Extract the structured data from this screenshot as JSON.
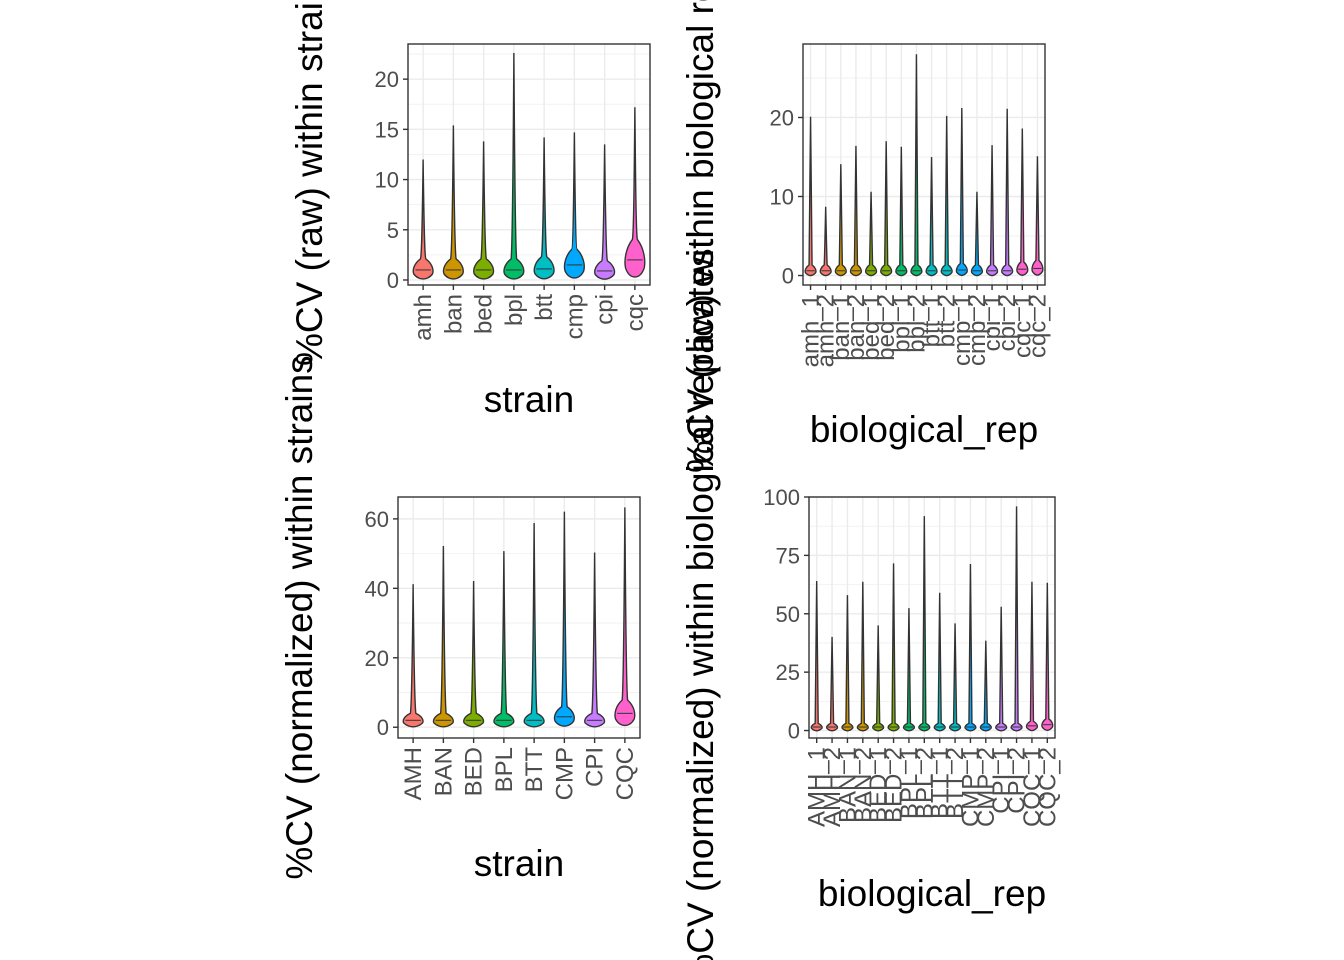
{
  "palette": [
    "#F8766D",
    "#CD9600",
    "#7CAE00",
    "#00BE67",
    "#00BFC4",
    "#00A9FF",
    "#C77CFF",
    "#FF61CC"
  ],
  "chart_data": [
    {
      "type": "violin",
      "xlabel": "strain",
      "ylabel": "%CV (raw) within strains",
      "ylim": [
        -0.5,
        23.5
      ],
      "yticks": [
        0,
        5,
        10,
        15,
        20
      ],
      "grid": true,
      "categories": [
        "amh",
        "ban",
        "bed",
        "bpl",
        "btt",
        "cmp",
        "cpi",
        "cqc"
      ],
      "max": [
        12,
        15.4,
        13.8,
        22.6,
        14.2,
        14.7,
        13.5,
        17.2
      ],
      "median": [
        1.0,
        1.0,
        1.0,
        1.0,
        1.1,
        1.5,
        0.9,
        2.0
      ]
    },
    {
      "type": "violin",
      "xlabel": "biological_rep",
      "ylabel": "%CV (raw) within biological replicates",
      "ylim": [
        -1.2,
        29.3
      ],
      "yticks": [
        0,
        10,
        20
      ],
      "grid": true,
      "categories": [
        "amh_1",
        "amh_2",
        "ban_1",
        "ban_2",
        "bed_1",
        "bed_2",
        "bpl_1",
        "bpl_2",
        "btt_1",
        "btt_2",
        "cmp_1",
        "cmp_2",
        "cpi_1",
        "cpi_2",
        "cqc_1",
        "cqc_2"
      ],
      "max": [
        20.1,
        8.7,
        14.1,
        16.4,
        10.6,
        17.0,
        16.3,
        28.0,
        15.0,
        20.2,
        21.2,
        10.6,
        16.5,
        21.1,
        18.6,
        15.1
      ],
      "median": [
        0.6,
        0.6,
        0.6,
        0.6,
        0.6,
        0.6,
        0.6,
        0.6,
        0.6,
        0.6,
        0.7,
        0.6,
        0.6,
        0.6,
        0.8,
        0.9
      ]
    },
    {
      "type": "violin",
      "xlabel": "strain",
      "ylabel": "%CV (normalized) within strains",
      "ylim": [
        -3.1,
        66.3
      ],
      "yticks": [
        0,
        20,
        40,
        60
      ],
      "grid": true,
      "categories": [
        "AMH",
        "BAN",
        "BED",
        "BPL",
        "BTT",
        "CMP",
        "CPI",
        "CQC"
      ],
      "max": [
        41.2,
        52.2,
        42.1,
        50.7,
        58.8,
        62.1,
        50.3,
        63.3
      ],
      "median": [
        2.0,
        2.0,
        2.0,
        2.0,
        2.0,
        3.0,
        2.0,
        4.0
      ]
    },
    {
      "type": "violin",
      "xlabel": "biological_rep",
      "ylabel": "%CV (normalized) within biological replicates",
      "ylim": [
        -3.2,
        100.0
      ],
      "yticks": [
        0,
        25,
        50,
        75,
        100
      ],
      "grid": true,
      "categories": [
        "AMH_1",
        "AMH_2",
        "BAN_1",
        "BAN_2",
        "BED_1",
        "BED_2",
        "BPL_1",
        "BPL_2",
        "BTT_1",
        "BTT_2",
        "CMP_1",
        "CMP_2",
        "CPI_1",
        "CPI_2",
        "CQC_1",
        "CQC_2"
      ],
      "max": [
        64.0,
        40.1,
        58.0,
        63.7,
        45.0,
        71.6,
        52.4,
        91.8,
        59.0,
        45.9,
        71.3,
        38.5,
        53.0,
        96.0,
        63.7,
        63.3
      ],
      "median": [
        1.5,
        1.5,
        1.5,
        1.5,
        1.5,
        1.5,
        1.5,
        1.5,
        1.5,
        1.5,
        1.5,
        1.5,
        1.5,
        1.5,
        2.0,
        2.5
      ]
    }
  ]
}
